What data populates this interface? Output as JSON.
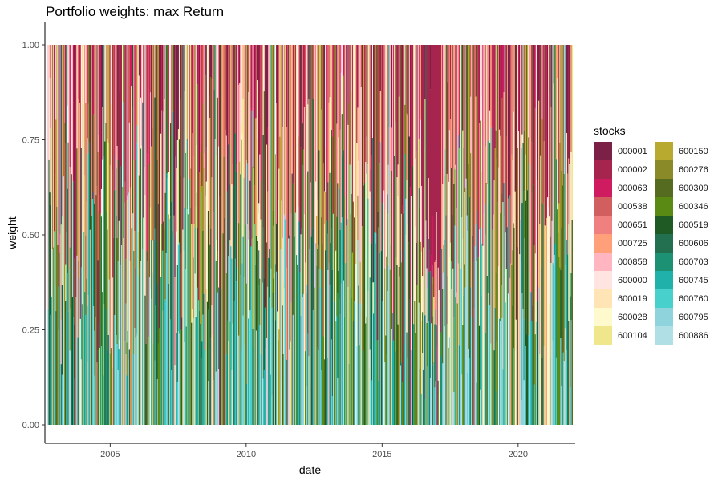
{
  "chart_data": {
    "type": "area",
    "stacked": true,
    "title": "Portfolio weights: max Return",
    "xlabel": "date",
    "ylabel": "weight",
    "xlim": [
      2002.6,
      2022.1
    ],
    "ylim": [
      0,
      1
    ],
    "x_ticks": [
      2005,
      2010,
      2015,
      2020
    ],
    "x_tick_labels": [
      "2005",
      "2010",
      "2015",
      "2020"
    ],
    "y_ticks": [
      0,
      0.25,
      0.5,
      0.75,
      1
    ],
    "y_tick_labels": [
      "0.00",
      "0.25",
      "0.50",
      "0.75",
      "1.00"
    ],
    "grid": false,
    "legend_position": "right",
    "legend_title": "stocks",
    "series": [
      {
        "name": "000001",
        "color": "#7b2046"
      },
      {
        "name": "000002",
        "color": "#a5254f"
      },
      {
        "name": "000063",
        "color": "#cf1c60"
      },
      {
        "name": "000538",
        "color": "#d25f5f"
      },
      {
        "name": "000651",
        "color": "#f08080"
      },
      {
        "name": "000725",
        "color": "#ffa07a"
      },
      {
        "name": "000858",
        "color": "#ffb6c1"
      },
      {
        "name": "600000",
        "color": "#ffe4e1"
      },
      {
        "name": "600019",
        "color": "#ffe4b5"
      },
      {
        "name": "600028",
        "color": "#fffacd"
      },
      {
        "name": "600104",
        "color": "#f0e68c"
      },
      {
        "name": "600150",
        "color": "#b8aa2f"
      },
      {
        "name": "600276",
        "color": "#8a8a28"
      },
      {
        "name": "600309",
        "color": "#556b1f"
      },
      {
        "name": "600346",
        "color": "#5b8a14"
      },
      {
        "name": "600519",
        "color": "#1f5a24"
      },
      {
        "name": "600606",
        "color": "#237051"
      },
      {
        "name": "600703",
        "color": "#1d9173"
      },
      {
        "name": "600745",
        "color": "#20b2aa"
      },
      {
        "name": "600760",
        "color": "#48d1cc"
      },
      {
        "name": "600795",
        "color": "#8fd3dc"
      },
      {
        "name": "600886",
        "color": "#b0e0e6"
      }
    ],
    "seed": 7,
    "bars": 600
  }
}
